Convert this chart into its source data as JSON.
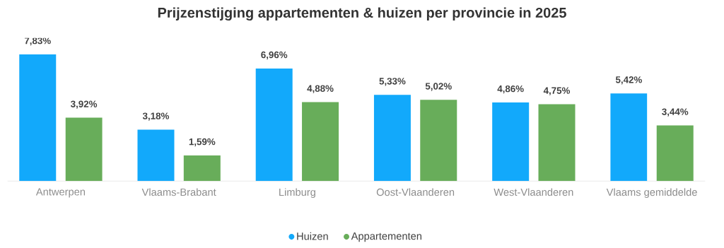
{
  "chart_data": {
    "type": "bar",
    "title": "Prijzenstijging appartementen & huizen per provincie in 2025",
    "categories": [
      "Antwerpen",
      "Vlaams-Brabant",
      "Limburg",
      "Oost-Vlaanderen",
      "West-Vlaanderen",
      "Vlaams gemiddelde"
    ],
    "series": [
      {
        "name": "Huizen",
        "color": "#12a9fb",
        "values": [
          7.83,
          3.18,
          6.96,
          5.33,
          4.86,
          5.42
        ],
        "value_labels": [
          "7,83%",
          "3,18%",
          "6,96%",
          "5,33%",
          "4,86%",
          "5,42%"
        ]
      },
      {
        "name": "Appartementen",
        "color": "#68ad5a",
        "values": [
          3.92,
          1.59,
          4.88,
          5.02,
          4.75,
          3.44
        ],
        "value_labels": [
          "3,92%",
          "1,59%",
          "4,88%",
          "5,02%",
          "4,75%",
          "3,44%"
        ]
      }
    ],
    "legend": "bottom"
  }
}
